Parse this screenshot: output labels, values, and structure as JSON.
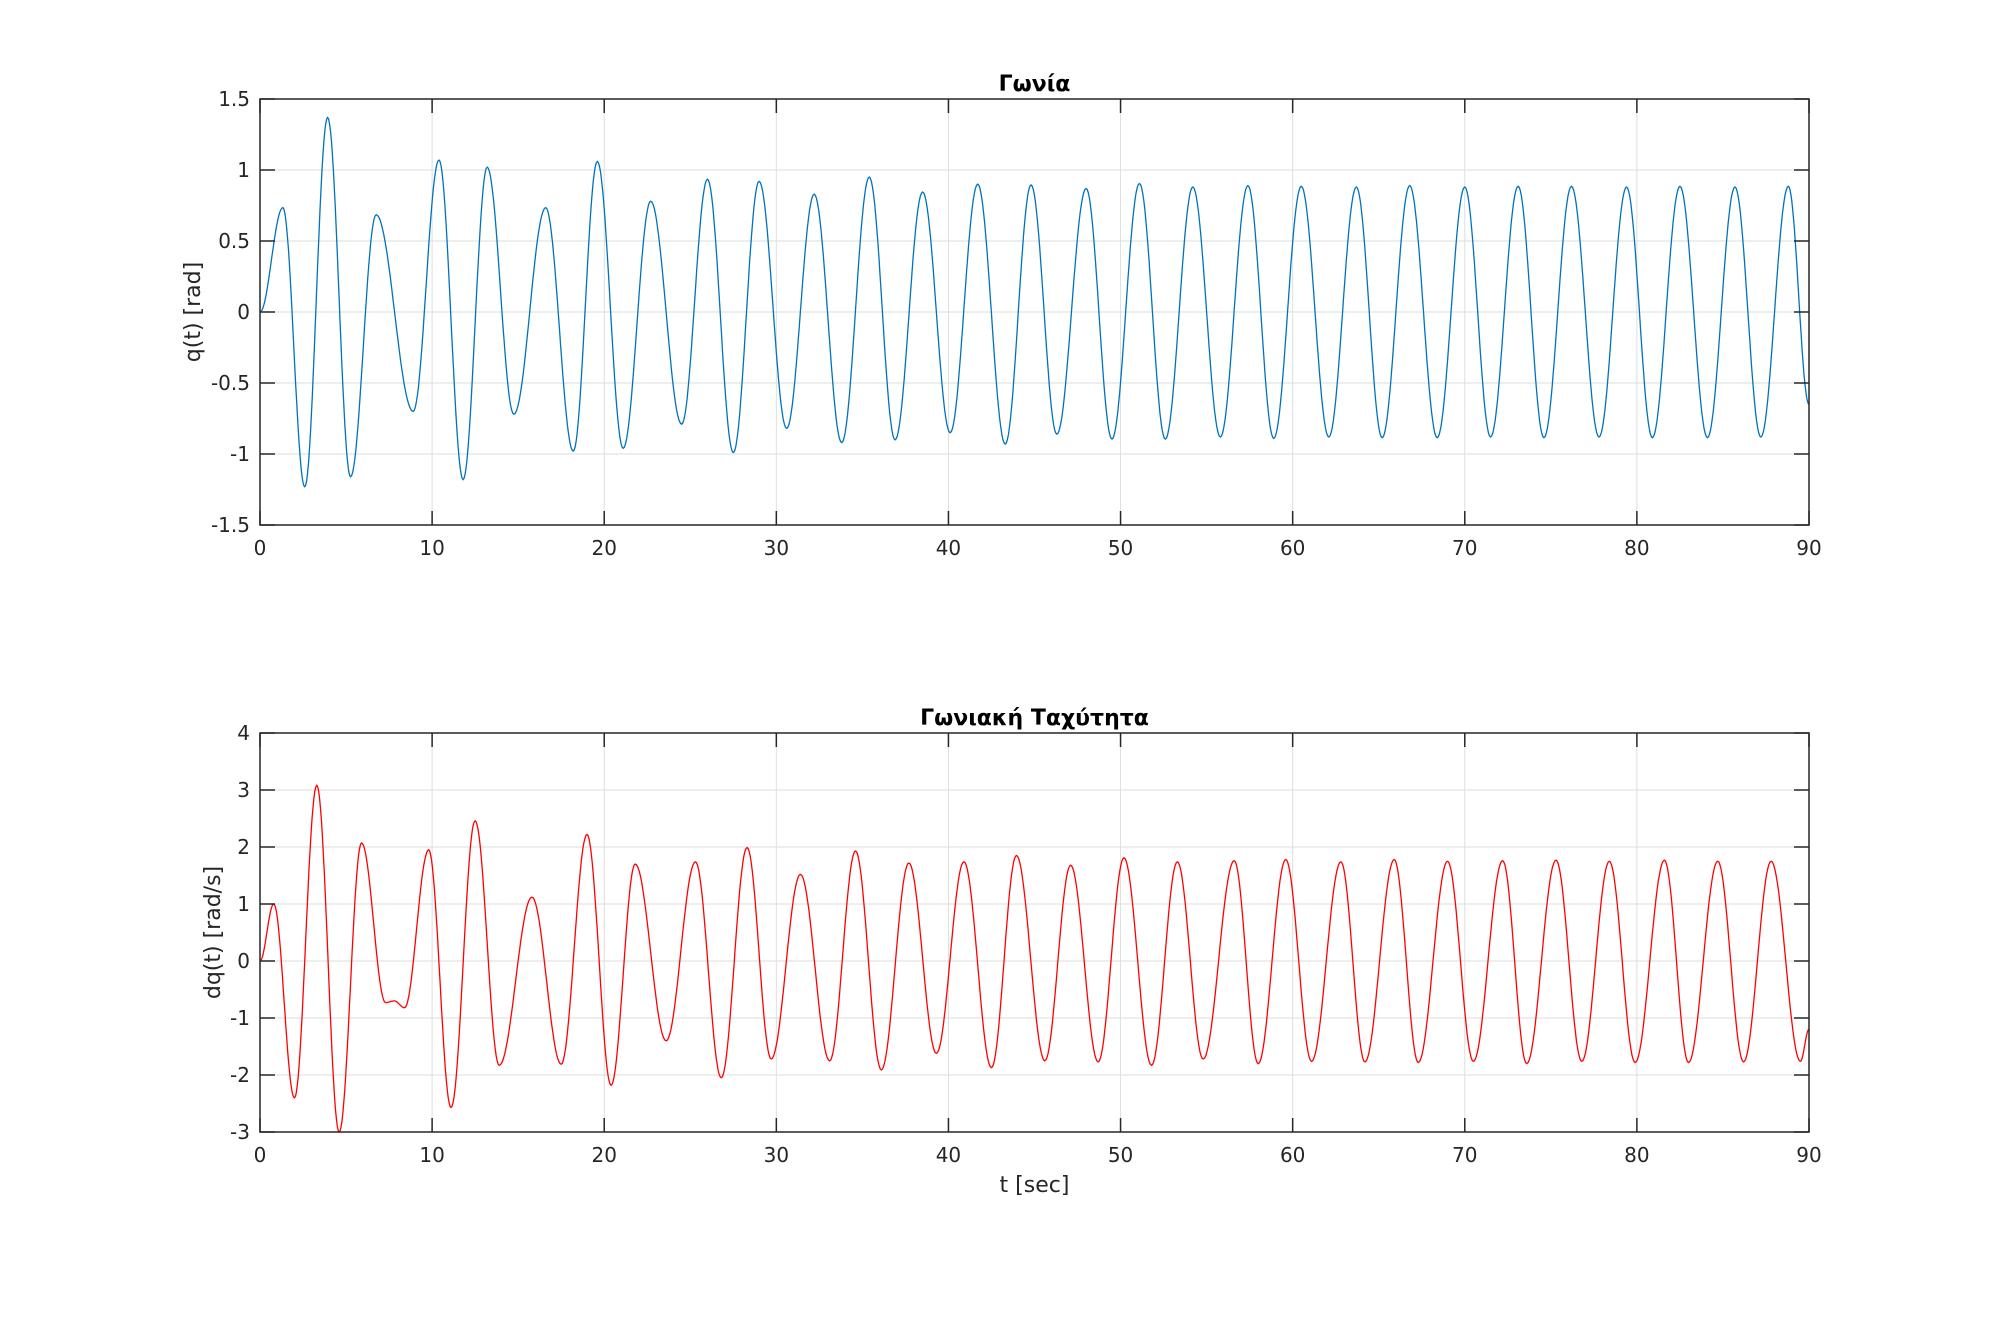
{
  "chart_data": [
    {
      "type": "line",
      "title": "Γωνία",
      "xlabel": "",
      "ylabel": "q(t) [rad]",
      "xlim": [
        0,
        90
      ],
      "ylim": [
        -1.5,
        1.5
      ],
      "xticks": [
        0,
        10,
        20,
        30,
        40,
        50,
        60,
        70,
        80,
        90
      ],
      "xtick_labels": [
        "0",
        "10",
        "20",
        "30",
        "40",
        "50",
        "60",
        "70",
        "80",
        "90"
      ],
      "yticks": [
        -1.5,
        -1,
        -0.5,
        0,
        0.5,
        1,
        1.5
      ],
      "ytick_labels": [
        "-1.5",
        "-1",
        "-0.5",
        "0",
        "0.5",
        "1",
        "1.5"
      ],
      "grid": true,
      "color": "#0072BD",
      "series": [
        {
          "x": [
            0,
            1.33,
            2.6,
            3.93,
            5.26,
            6.75,
            8.9,
            10.4,
            11.8,
            13.2,
            14.75,
            16.6,
            18.2,
            19.6,
            21.1,
            22.7,
            24.5,
            26.0,
            27.5,
            29.0,
            30.6,
            32.2,
            33.8,
            35.4,
            36.9,
            38.5,
            40.1,
            41.7,
            43.3,
            44.8,
            46.3,
            48.0,
            49.5,
            51.1,
            52.6,
            54.2,
            55.8,
            57.4,
            58.9,
            60.5,
            62.1,
            63.7,
            65.2,
            66.8,
            68.4,
            70.0,
            71.5,
            73.1,
            74.6,
            76.2,
            77.8,
            79.4,
            80.9,
            82.5,
            84.1,
            85.7,
            87.2,
            88.8,
            90
          ],
          "y": [
            0,
            0.735,
            -1.23,
            1.37,
            -1.16,
            0.685,
            -0.7,
            1.07,
            -1.18,
            1.02,
            -0.72,
            0.735,
            -0.98,
            1.06,
            -0.96,
            0.78,
            -0.79,
            0.935,
            -0.99,
            0.92,
            -0.82,
            0.83,
            -0.92,
            0.95,
            -0.9,
            0.845,
            -0.85,
            0.9,
            -0.93,
            0.895,
            -0.86,
            0.87,
            -0.895,
            0.905,
            -0.895,
            0.88,
            -0.88,
            0.89,
            -0.89,
            0.885,
            -0.88,
            0.88,
            -0.885,
            0.89,
            -0.885,
            0.88,
            -0.88,
            0.885,
            -0.885,
            0.885,
            -0.88,
            0.88,
            -0.885,
            0.885,
            -0.885,
            0.88,
            -0.88,
            0.885,
            -0.65
          ]
        }
      ]
    },
    {
      "type": "line",
      "title": "Γωνιακή Ταχύτητα",
      "xlabel": "t [sec]",
      "ylabel": "dq(t) [rad/s]",
      "xlim": [
        0,
        90
      ],
      "ylim": [
        -3,
        4
      ],
      "xticks": [
        0,
        10,
        20,
        30,
        40,
        50,
        60,
        70,
        80,
        90
      ],
      "xtick_labels": [
        "0",
        "10",
        "20",
        "30",
        "40",
        "50",
        "60",
        "70",
        "80",
        "90"
      ],
      "yticks": [
        -3,
        -2,
        -1,
        0,
        1,
        2,
        3,
        4
      ],
      "ytick_labels": [
        "-3",
        "-2",
        "-1",
        "0",
        "1",
        "2",
        "3",
        "4"
      ],
      "grid": true,
      "color": "#FF0000",
      "series": [
        {
          "x": [
            0,
            0.8,
            2.0,
            3.3,
            4.6,
            5.9,
            7.3,
            7.8,
            8.4,
            9.8,
            11.1,
            12.5,
            13.9,
            15.8,
            17.5,
            19.0,
            20.4,
            21.8,
            23.6,
            25.3,
            26.8,
            28.3,
            29.7,
            31.4,
            33.1,
            34.6,
            36.1,
            37.7,
            39.3,
            40.9,
            42.5,
            43.95,
            45.6,
            47.1,
            48.7,
            50.2,
            51.8,
            53.3,
            54.8,
            56.6,
            58.0,
            59.6,
            61.1,
            62.8,
            64.2,
            65.9,
            67.3,
            69.0,
            70.5,
            72.2,
            73.6,
            75.3,
            76.8,
            78.4,
            79.9,
            81.6,
            83.0,
            84.7,
            86.2,
            87.8,
            89.5,
            90
          ],
          "y": [
            0,
            1.0,
            -2.4,
            3.08,
            -3.0,
            2.07,
            -0.73,
            -0.7,
            -0.82,
            1.95,
            -2.57,
            2.46,
            -1.83,
            1.12,
            -1.81,
            2.22,
            -2.18,
            1.7,
            -1.4,
            1.74,
            -2.05,
            1.99,
            -1.72,
            1.52,
            -1.75,
            1.93,
            -1.91,
            1.72,
            -1.62,
            1.74,
            -1.87,
            1.85,
            -1.75,
            1.68,
            -1.77,
            1.81,
            -1.83,
            1.74,
            -1.72,
            1.76,
            -1.8,
            1.78,
            -1.76,
            1.74,
            -1.77,
            1.78,
            -1.78,
            1.75,
            -1.76,
            1.76,
            -1.8,
            1.77,
            -1.76,
            1.75,
            -1.78,
            1.77,
            -1.78,
            1.75,
            -1.77,
            1.75,
            -1.76,
            -1.2
          ]
        }
      ]
    }
  ]
}
